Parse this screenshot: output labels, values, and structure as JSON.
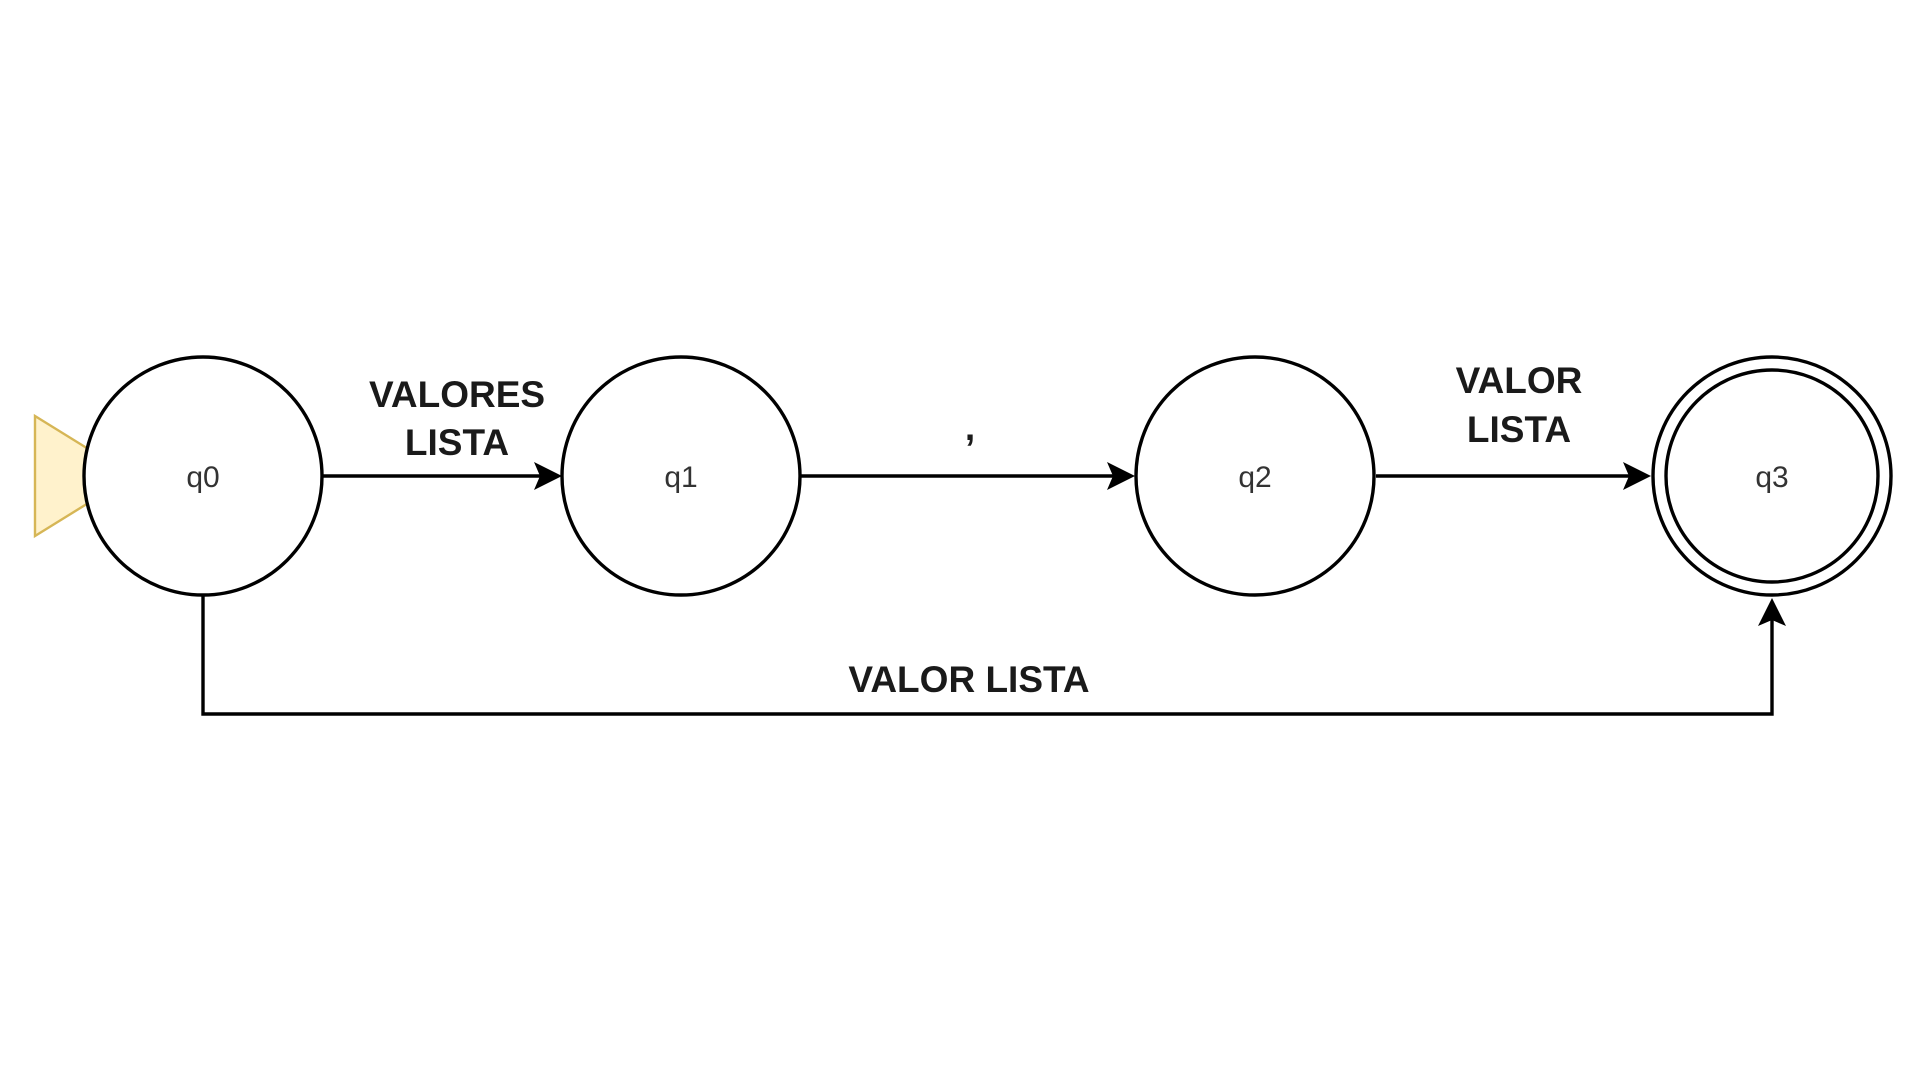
{
  "automaton": {
    "states": [
      {
        "id": "q0",
        "label": "q0",
        "initial": true,
        "accepting": false
      },
      {
        "id": "q1",
        "label": "q1",
        "initial": false,
        "accepting": false
      },
      {
        "id": "q2",
        "label": "q2",
        "initial": false,
        "accepting": false
      },
      {
        "id": "q3",
        "label": "q3",
        "initial": false,
        "accepting": true
      }
    ],
    "transitions": [
      {
        "from": "q0",
        "to": "q1",
        "label_lines": [
          "VALORES",
          "LISTA"
        ]
      },
      {
        "from": "q1",
        "to": "q2",
        "label_lines": [
          ","
        ]
      },
      {
        "from": "q2",
        "to": "q3",
        "label_lines": [
          "VALOR",
          "LISTA"
        ]
      },
      {
        "from": "q0",
        "to": "q3",
        "label_lines": [
          "VALOR LISTA"
        ]
      }
    ]
  },
  "colors": {
    "start_marker_fill": "#fff2cc",
    "start_marker_stroke": "#d6b656",
    "stroke": "#000000"
  }
}
